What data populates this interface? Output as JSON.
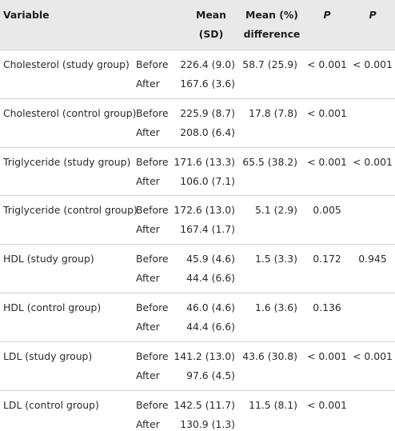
{
  "headers": {
    "variable": "Variable",
    "mean_line1": "Mean",
    "mean_line2": "(SD)",
    "diff_line1": "Mean (%)",
    "diff_line2": "difference",
    "p1": "P",
    "p2": "P"
  },
  "rows": [
    {
      "variable": "Cholesterol (study group)",
      "before_label": "Before",
      "after_label": "After",
      "before_mean": "226.4 (9.0)",
      "after_mean": "167.6 (3.6)",
      "diff": "58.7 (25.9)",
      "p1": "< 0.001",
      "p2": "< 0.001"
    },
    {
      "variable": "Cholesterol (control group)",
      "before_label": "Before",
      "after_label": "After",
      "before_mean": "225.9 (8.7)",
      "after_mean": "208.0 (6.4)",
      "diff": "17.8 (7.8)",
      "p1": "< 0.001",
      "p2": ""
    },
    {
      "variable": "Triglyceride (study group)",
      "before_label": "Before",
      "after_label": "After",
      "before_mean": "171.6 (13.3)",
      "after_mean": "106.0 (7.1)",
      "diff": "65.5 (38.2)",
      "p1": "< 0.001",
      "p2": "< 0.001"
    },
    {
      "variable": "Triglyceride (control group)",
      "before_label": "Before",
      "after_label": "After",
      "before_mean": "172.6 (13.0)",
      "after_mean": "167.4 (1.7)",
      "diff": "5.1 (2.9)",
      "p1": "0.005",
      "p2": ""
    },
    {
      "variable": "HDL (study group)",
      "before_label": "Before",
      "after_label": "After",
      "before_mean": "45.9 (4.6)",
      "after_mean": "44.4 (6.6)",
      "diff": "1.5 (3.3)",
      "p1": "0.172",
      "p2": "0.945"
    },
    {
      "variable": "HDL (control group)",
      "before_label": "Before",
      "after_label": "After",
      "before_mean": "46.0 (4.6)",
      "after_mean": "44.4 (6.6)",
      "diff": "1.6 (3.6)",
      "p1": "0.136",
      "p2": ""
    },
    {
      "variable": "LDL (study group)",
      "before_label": "Before",
      "after_label": "After",
      "before_mean": "141.2 (13.0)",
      "after_mean": "97.6 (4.5)",
      "diff": "43.6 (30.8)",
      "p1": "< 0.001",
      "p2": "< 0.001"
    },
    {
      "variable": "LDL (control group)",
      "before_label": "Before",
      "after_label": "After",
      "before_mean": "142.5 (11.7)",
      "after_mean": "130.9 (1.3)",
      "diff": "11.5 (8.1)",
      "p1": "< 0.001",
      "p2": ""
    }
  ]
}
